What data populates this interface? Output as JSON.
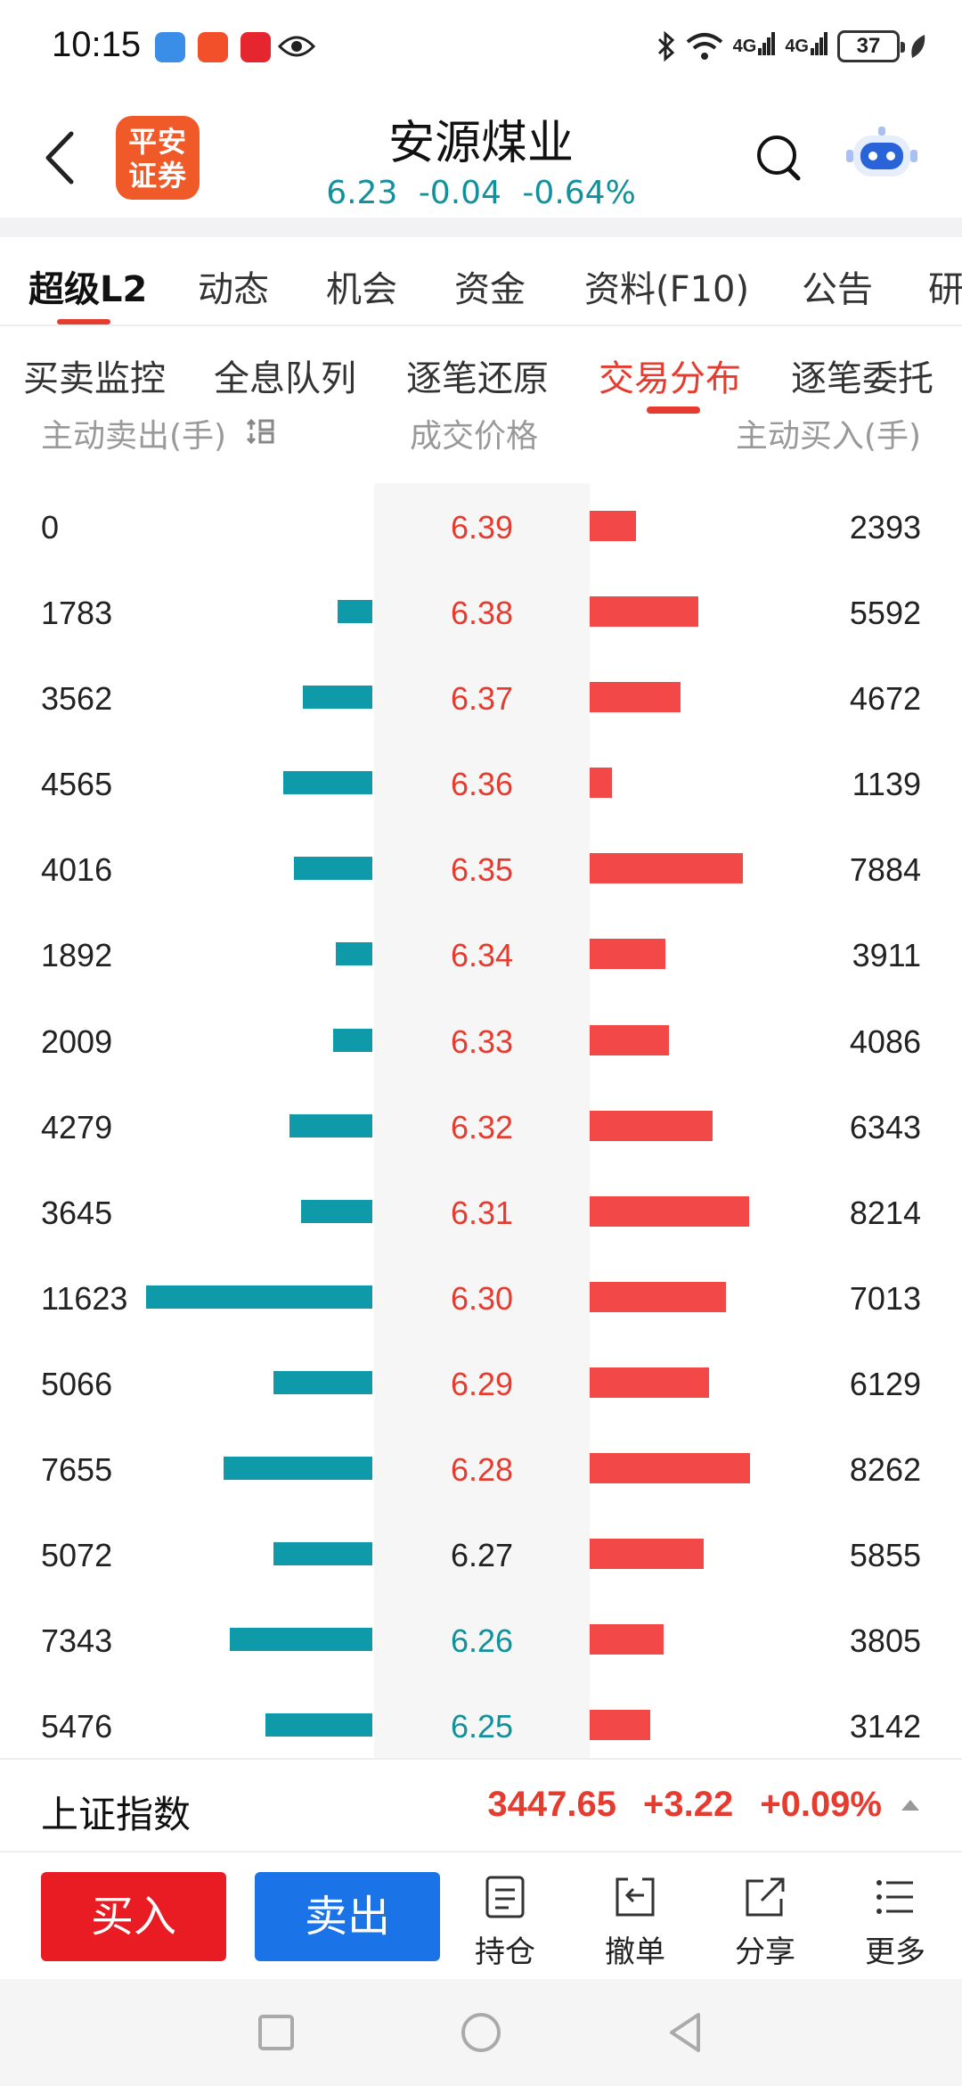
{
  "status_bar": {
    "time": "10:15",
    "network_1": "4G",
    "network_2": "4G",
    "battery": "37"
  },
  "header": {
    "logo_text": "平安\n证券",
    "logo_line1": "平安",
    "logo_line2": "证券",
    "stock_name": "安源煤业",
    "price": "6.23",
    "change": "-0.04",
    "change_pct": "-0.64%"
  },
  "tabs_primary": [
    "超级L2",
    "动态",
    "机会",
    "资金",
    "资料(F10)",
    "公告",
    "研"
  ],
  "tabs_secondary": [
    "买卖监控",
    "全息队列",
    "逐笔还原",
    "交易分布",
    "逐笔委托"
  ],
  "table": {
    "header_sell": "主动卖出(手)",
    "header_price": "成交价格",
    "header_buy": "主动买入(手)",
    "rows": [
      {
        "sell": "0",
        "price": "6.39",
        "buy": "2393"
      },
      {
        "sell": "1783",
        "price": "6.38",
        "buy": "5592"
      },
      {
        "sell": "3562",
        "price": "6.37",
        "buy": "4672"
      },
      {
        "sell": "4565",
        "price": "6.36",
        "buy": "1139"
      },
      {
        "sell": "4016",
        "price": "6.35",
        "buy": "7884"
      },
      {
        "sell": "1892",
        "price": "6.34",
        "buy": "3911"
      },
      {
        "sell": "2009",
        "price": "6.33",
        "buy": "4086"
      },
      {
        "sell": "4279",
        "price": "6.32",
        "buy": "6343"
      },
      {
        "sell": "3645",
        "price": "6.31",
        "buy": "8214"
      },
      {
        "sell": "11623",
        "price": "6.30",
        "buy": "7013"
      },
      {
        "sell": "5066",
        "price": "6.29",
        "buy": "6129"
      },
      {
        "sell": "7655",
        "price": "6.28",
        "buy": "8262"
      },
      {
        "sell": "5072",
        "price": "6.27",
        "buy": "5855"
      },
      {
        "sell": "7343",
        "price": "6.26",
        "buy": "3805"
      },
      {
        "sell": "5476",
        "price": "6.25",
        "buy": "3142"
      }
    ]
  },
  "colors": {
    "up": "#e63c2f",
    "down": "#11919c",
    "flat": "#222222",
    "sell_bar": "#0e9aa8",
    "buy_bar": "#f24848",
    "buy_button": "#e81c22",
    "sell_button": "#1a74e8",
    "logo": "#f05a28"
  },
  "index_bar": {
    "name": "上证指数",
    "value": "3447.65",
    "change": "+3.22",
    "change_pct": "+0.09%"
  },
  "actions": {
    "buy": "买入",
    "sell": "卖出",
    "positions": "持仓",
    "cancel_order": "撤单",
    "share": "分享",
    "more": "更多"
  }
}
